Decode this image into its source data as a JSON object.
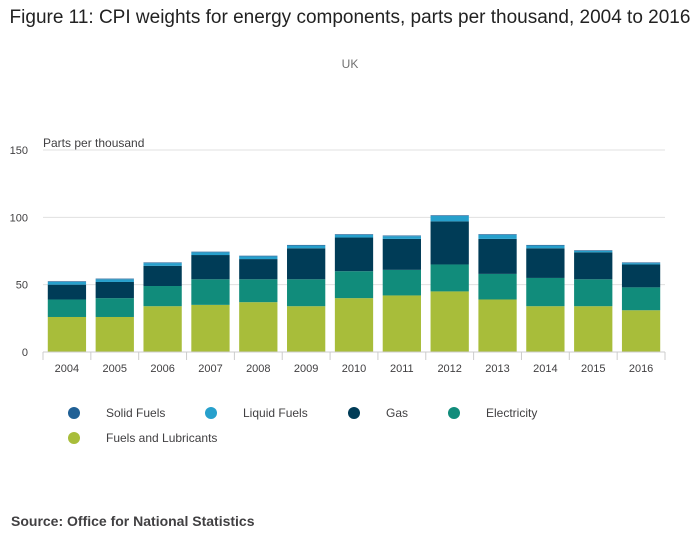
{
  "chart_data": {
    "type": "bar",
    "stacked": true,
    "title": "Figure 11: CPI weights for energy components, parts per thousand, 2004 to 2016",
    "subtitle": "UK",
    "ylabel": "Parts per thousand",
    "xlabel": "",
    "ylim": [
      0,
      150
    ],
    "yticks": [
      0,
      50,
      100,
      150
    ],
    "grid": true,
    "legend_position": "bottom",
    "categories": [
      "2004",
      "2005",
      "2006",
      "2007",
      "2008",
      "2009",
      "2010",
      "2011",
      "2012",
      "2013",
      "2014",
      "2015",
      "2016"
    ],
    "series": [
      {
        "name": "Fuels and Lubricants",
        "color": "#a8bd3a",
        "values": [
          26,
          26,
          34,
          35,
          37,
          34,
          40,
          42,
          45,
          39,
          34,
          34,
          31
        ]
      },
      {
        "name": "Electricity",
        "color": "#118c7b",
        "values": [
          13,
          14,
          15,
          19,
          17,
          20,
          20,
          19,
          20,
          19,
          21,
          20,
          17
        ]
      },
      {
        "name": "Gas",
        "color": "#003c57",
        "values": [
          11,
          12,
          15,
          18,
          15,
          23,
          25,
          23,
          32,
          26,
          22,
          20,
          17
        ]
      },
      {
        "name": "Liquid Fuels",
        "color": "#27a0cc",
        "values": [
          2,
          2,
          2,
          2,
          2,
          2,
          2,
          2,
          4,
          3,
          2,
          1,
          1
        ]
      },
      {
        "name": "Solid Fuels",
        "color": "#206095",
        "values": [
          0.5,
          0.5,
          0.5,
          0.5,
          0.5,
          0.5,
          0.5,
          0.5,
          0.5,
          0.5,
          0.5,
          0.5,
          0.5
        ]
      }
    ]
  },
  "legend": {
    "items": [
      {
        "label": "Solid Fuels",
        "color": "#206095"
      },
      {
        "label": "Liquid Fuels",
        "color": "#27a0cc"
      },
      {
        "label": "Gas",
        "color": "#003c57"
      },
      {
        "label": "Electricity",
        "color": "#118c7b"
      },
      {
        "label": "Fuels and Lubricants",
        "color": "#a8bd3a"
      }
    ]
  },
  "source": "Source: Office for National Statistics"
}
